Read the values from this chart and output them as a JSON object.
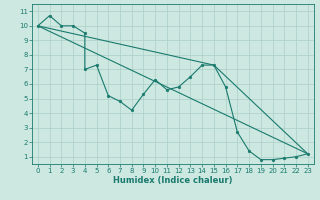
{
  "xlabel": "Humidex (Indice chaleur)",
  "background_color": "#cce8e0",
  "grid_color": "#aacfc8",
  "line_color": "#1a7a6e",
  "xlim": [
    -0.5,
    23.5
  ],
  "ylim": [
    0.5,
    11.5
  ],
  "xticks": [
    0,
    1,
    2,
    3,
    4,
    5,
    6,
    7,
    8,
    9,
    10,
    11,
    12,
    13,
    14,
    15,
    16,
    17,
    18,
    19,
    20,
    21,
    22,
    23
  ],
  "yticks": [
    1,
    2,
    3,
    4,
    5,
    6,
    7,
    8,
    9,
    10,
    11
  ],
  "series1_x": [
    0,
    1,
    2,
    3,
    4,
    4,
    5,
    6,
    7,
    8,
    9,
    10,
    11,
    12,
    13,
    14,
    15,
    16,
    17,
    18,
    19,
    20,
    21,
    22,
    23
  ],
  "series1_y": [
    10,
    10.7,
    10,
    10,
    9.5,
    7.0,
    7.3,
    5.2,
    4.8,
    4.2,
    5.3,
    6.3,
    5.6,
    5.8,
    6.5,
    7.3,
    7.3,
    5.8,
    2.7,
    1.4,
    0.8,
    0.8,
    0.9,
    1.0,
    1.2
  ],
  "series2_x": [
    0,
    23
  ],
  "series2_y": [
    10,
    1.2
  ],
  "series3_x": [
    0,
    15,
    23
  ],
  "series3_y": [
    10,
    7.3,
    1.2
  ],
  "xlabel_fontsize": 6,
  "tick_fontsize": 5,
  "linewidth": 0.8,
  "markersize": 2.0
}
